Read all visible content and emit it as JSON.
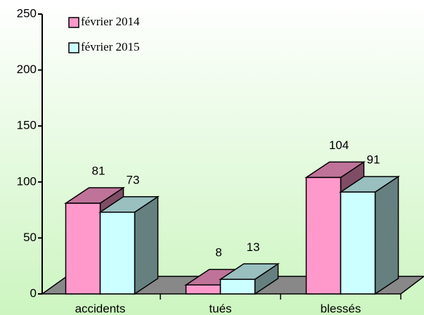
{
  "chart_data": {
    "type": "bar3d",
    "categories": [
      "accidents",
      "tués",
      "blessés"
    ],
    "series": [
      {
        "name": "février 2014",
        "color": "#ff99cc",
        "values": [
          81,
          8,
          104
        ]
      },
      {
        "name": "février 2015",
        "color": "#ccffff",
        "values": [
          73,
          13,
          91
        ]
      }
    ],
    "ylim": [
      0,
      250
    ],
    "yticks": [
      0,
      50,
      100,
      150,
      200,
      250
    ]
  }
}
